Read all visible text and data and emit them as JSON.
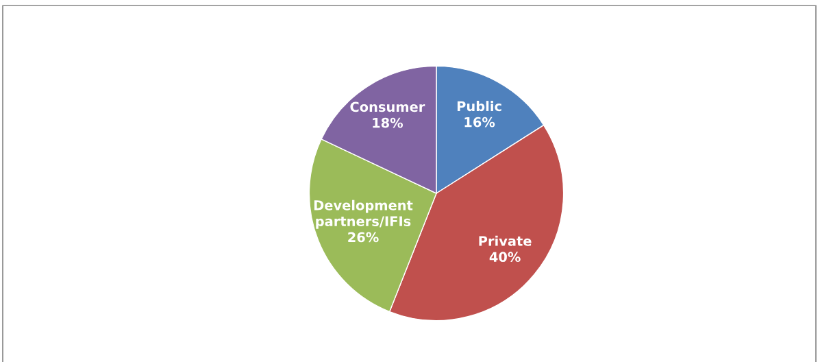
{
  "chart_data": {
    "type": "pie",
    "categories": [
      "Public",
      "Private",
      "Development partners/IFIs",
      "Consumer"
    ],
    "values": [
      16,
      40,
      26,
      18
    ],
    "value_labels": [
      "16%",
      "40%",
      "26%",
      "18%"
    ],
    "colors": [
      "#4f81bd",
      "#c0504d",
      "#9bbb59",
      "#8064a2"
    ],
    "data_labels": true,
    "legend": false
  }
}
